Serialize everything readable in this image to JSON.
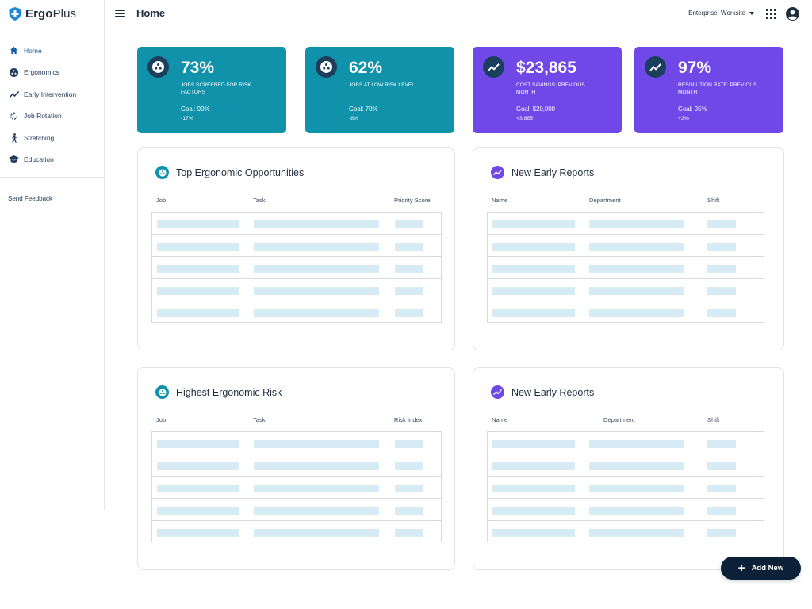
{
  "brand": {
    "name_bold": "Ergo",
    "name_light": "Plus",
    "shield_color": "#1b88d8"
  },
  "header": {
    "title": "Home",
    "enterprise": "Enterprise: Worksite"
  },
  "sidebar": {
    "items": [
      {
        "label": "Home",
        "icon": "home-icon"
      },
      {
        "label": "Ergonomics",
        "icon": "ergonomics-icon"
      },
      {
        "label": "Early Intervention",
        "icon": "trend-icon"
      },
      {
        "label": "Job Rotation",
        "icon": "rotation-icon"
      },
      {
        "label": "Stretching",
        "icon": "stretching-icon"
      },
      {
        "label": "Education",
        "icon": "graduation-cap-icon"
      }
    ],
    "feedback": "Send Feedback"
  },
  "stats": [
    {
      "value": "73%",
      "caption": "JOBS SCREENED FOR RISK FACTORS",
      "goal": "Goal: 90%",
      "delta": "-17%",
      "color": "#1092ab",
      "icon": "ergonomics-icon"
    },
    {
      "value": "62%",
      "caption": "JOBS AT LOW RISK LEVEL",
      "goal": "Goal: 70%",
      "delta": "-8%",
      "color": "#1092ab",
      "icon": "ergonomics-icon"
    },
    {
      "value": "$23,865",
      "caption": "COST SAVINGS: PREVIOUS MONTH",
      "goal": "Goal: $20,000",
      "delta": "+3,865",
      "color": "#7048e8",
      "icon": "trend-icon"
    },
    {
      "value": "97%",
      "caption": "RESOLUTION RATE: PREVIOUS MONTH",
      "goal": "Goal: 95%",
      "delta": "+2%",
      "color": "#7048e8",
      "icon": "trend-icon"
    }
  ],
  "panels": [
    {
      "title": "Top Ergonomic Opportunities",
      "columns": [
        "Job",
        "Task",
        "Priority Score"
      ]
    },
    {
      "title": "New Early Reports",
      "columns": [
        "Name",
        "Department",
        "Shift"
      ]
    },
    {
      "title": "Highest Ergonomic Risk",
      "columns": [
        "Job",
        "Task",
        "Risk Index"
      ]
    },
    {
      "title": "New Early Reports",
      "columns": [
        "Name",
        "Department",
        "Shift"
      ]
    }
  ],
  "fab": {
    "label": "Add New"
  }
}
